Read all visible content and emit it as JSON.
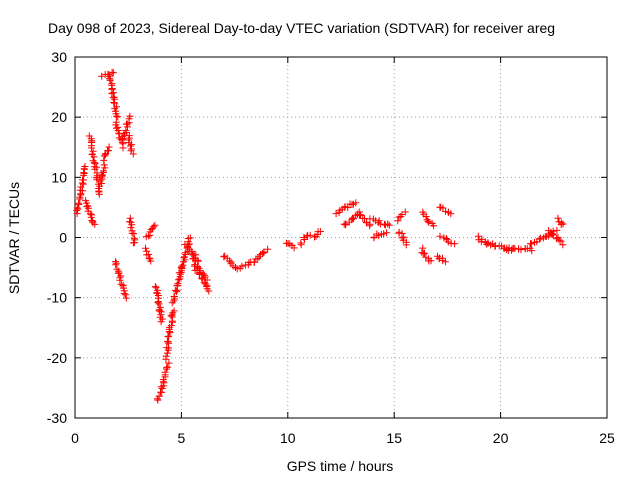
{
  "chart_data": {
    "type": "scatter",
    "title": "Day 098 of 2023, Sidereal Day-to-day VTEC variation (SDTVAR) for receiver areg",
    "xlabel": "GPS time / hours",
    "ylabel": "SDTVAR / TECUs",
    "xlim": [
      0,
      25
    ],
    "ylim": [
      -30,
      30
    ],
    "xticks": [
      0,
      5,
      10,
      15,
      20,
      25
    ],
    "xtick_labels": [
      "0",
      "5",
      "10",
      "15",
      "20",
      "25"
    ],
    "yticks": [
      -30,
      -20,
      -10,
      0,
      10,
      20,
      30
    ],
    "ytick_labels": [
      "-30",
      "-20",
      "-10",
      "0",
      "10",
      "20",
      "30"
    ],
    "grid": true,
    "marker": "+",
    "color": "#ff0000",
    "series": [
      {
        "name": "SDTVAR",
        "segments": [
          {
            "x": [
              0.1,
              0.5
            ],
            "y": [
              4,
              12
            ]
          },
          {
            "x": [
              0.5,
              0.9
            ],
            "y": [
              6,
              2
            ]
          },
          {
            "x": [
              0.7,
              1.1
            ],
            "y": [
              17,
              9
            ]
          },
          {
            "x": [
              1.1,
              1.4
            ],
            "y": [
              7,
              12
            ]
          },
          {
            "x": [
              1.4,
              1.6
            ],
            "y": [
              13,
              15
            ]
          },
          {
            "x": [
              1.3,
              1.8
            ],
            "y": [
              27,
              27.5
            ]
          },
          {
            "x": [
              1.6,
              2.0
            ],
            "y": [
              27,
              20
            ]
          },
          {
            "x": [
              1.9,
              2.3
            ],
            "y": [
              19,
              15
            ]
          },
          {
            "x": [
              2.2,
              2.6
            ],
            "y": [
              16,
              20
            ]
          },
          {
            "x": [
              2.5,
              2.7
            ],
            "y": [
              17,
              14
            ]
          },
          {
            "x": [
              1.9,
              2.4
            ],
            "y": [
              -4,
              -10
            ]
          },
          {
            "x": [
              2.6,
              2.8
            ],
            "y": [
              3,
              -1
            ]
          },
          {
            "x": [
              3.3,
              3.6
            ],
            "y": [
              -2,
              -4
            ]
          },
          {
            "x": [
              3.4,
              3.8
            ],
            "y": [
              0,
              2
            ]
          },
          {
            "x": [
              3.8,
              4.1
            ],
            "y": [
              -8,
              -14
            ]
          },
          {
            "x": [
              3.9,
              4.4
            ],
            "y": [
              -27,
              -21
            ]
          },
          {
            "x": [
              4.3,
              4.6
            ],
            "y": [
              -20,
              -12
            ]
          },
          {
            "x": [
              4.6,
              5.0
            ],
            "y": [
              -11,
              -5
            ]
          },
          {
            "x": [
              5.0,
              5.4
            ],
            "y": [
              -6,
              0
            ]
          },
          {
            "x": [
              5.2,
              5.8
            ],
            "y": [
              -1,
              -4
            ]
          },
          {
            "x": [
              5.5,
              6.3
            ],
            "y": [
              -3,
              -9
            ]
          },
          {
            "x": [
              5.6,
              6.2
            ],
            "y": [
              -5,
              -7
            ]
          },
          {
            "x": [
              7.0,
              7.6
            ],
            "y": [
              -3,
              -5
            ]
          },
          {
            "x": [
              7.8,
              8.4
            ],
            "y": [
              -5,
              -4
            ]
          },
          {
            "x": [
              8.4,
              9.0
            ],
            "y": [
              -4,
              -2
            ]
          },
          {
            "x": [
              9.9,
              10.3
            ],
            "y": [
              -1,
              -1.5
            ]
          },
          {
            "x": [
              10.6,
              11.0
            ],
            "y": [
              -1,
              0.5
            ]
          },
          {
            "x": [
              11.3,
              11.5
            ],
            "y": [
              0,
              1
            ]
          },
          {
            "x": [
              12.3,
              13.2
            ],
            "y": [
              4,
              6
            ]
          },
          {
            "x": [
              12.6,
              13.4
            ],
            "y": [
              2,
              4
            ]
          },
          {
            "x": [
              13.3,
              13.9
            ],
            "y": [
              4,
              2
            ]
          },
          {
            "x": [
              13.9,
              14.8
            ],
            "y": [
              3,
              2
            ]
          },
          {
            "x": [
              14.0,
              14.6
            ],
            "y": [
              0,
              1
            ]
          },
          {
            "x": [
              15.2,
              15.6
            ],
            "y": [
              1,
              -1
            ]
          },
          {
            "x": [
              15.2,
              15.5
            ],
            "y": [
              3,
              4
            ]
          },
          {
            "x": [
              16.3,
              16.8
            ],
            "y": [
              4,
              2
            ]
          },
          {
            "x": [
              16.3,
              16.7
            ],
            "y": [
              -2,
              -4
            ]
          },
          {
            "x": [
              17.0,
              17.4
            ],
            "y": [
              -3,
              -4
            ]
          },
          {
            "x": [
              17.1,
              17.7
            ],
            "y": [
              5,
              4
            ]
          },
          {
            "x": [
              17.2,
              17.8
            ],
            "y": [
              0,
              -1
            ]
          },
          {
            "x": [
              18.9,
              19.4
            ],
            "y": [
              0,
              -1
            ]
          },
          {
            "x": [
              19.3,
              20.5
            ],
            "y": [
              -1,
              -2
            ]
          },
          {
            "x": [
              20.3,
              21.5
            ],
            "y": [
              -2,
              -2
            ]
          },
          {
            "x": [
              21.4,
              22.6
            ],
            "y": [
              -1,
              1
            ]
          },
          {
            "x": [
              22.3,
              22.9
            ],
            "y": [
              1,
              -1
            ]
          },
          {
            "x": [
              22.7,
              22.9
            ],
            "y": [
              3,
              2
            ]
          }
        ]
      }
    ]
  }
}
